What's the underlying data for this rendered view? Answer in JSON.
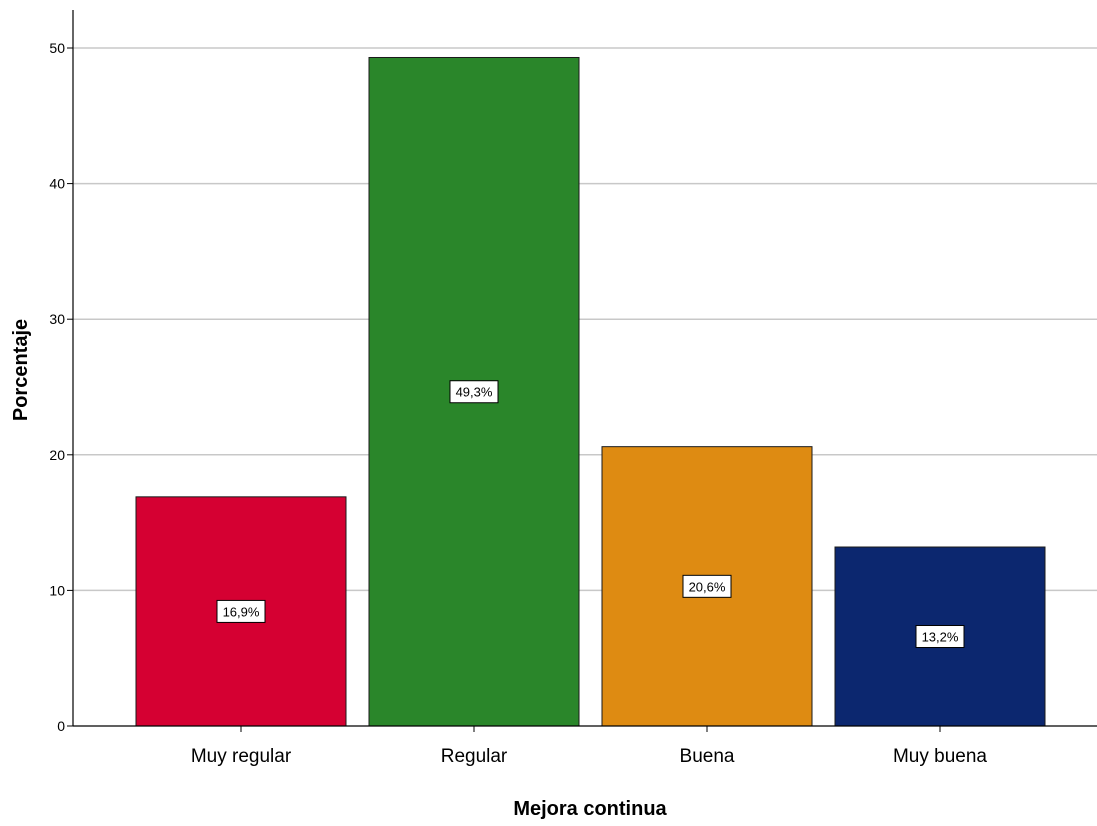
{
  "chart_data": {
    "type": "bar",
    "title": "",
    "xlabel": "Mejora continua",
    "ylabel": "Porcentaje",
    "categories": [
      "Muy regular",
      "Regular",
      "Buena",
      "Muy buena"
    ],
    "values": [
      16.9,
      49.3,
      20.6,
      13.2
    ],
    "data_labels": [
      "16,9%",
      "49,3%",
      "20,6%",
      "13,2%"
    ],
    "colors": [
      "#d50032",
      "#2a862a",
      "#de8b12",
      "#0c276f"
    ],
    "ylim": [
      0,
      52
    ],
    "yticks": [
      0,
      10,
      20,
      30,
      40,
      50
    ],
    "grid": true,
    "legend": "none"
  }
}
